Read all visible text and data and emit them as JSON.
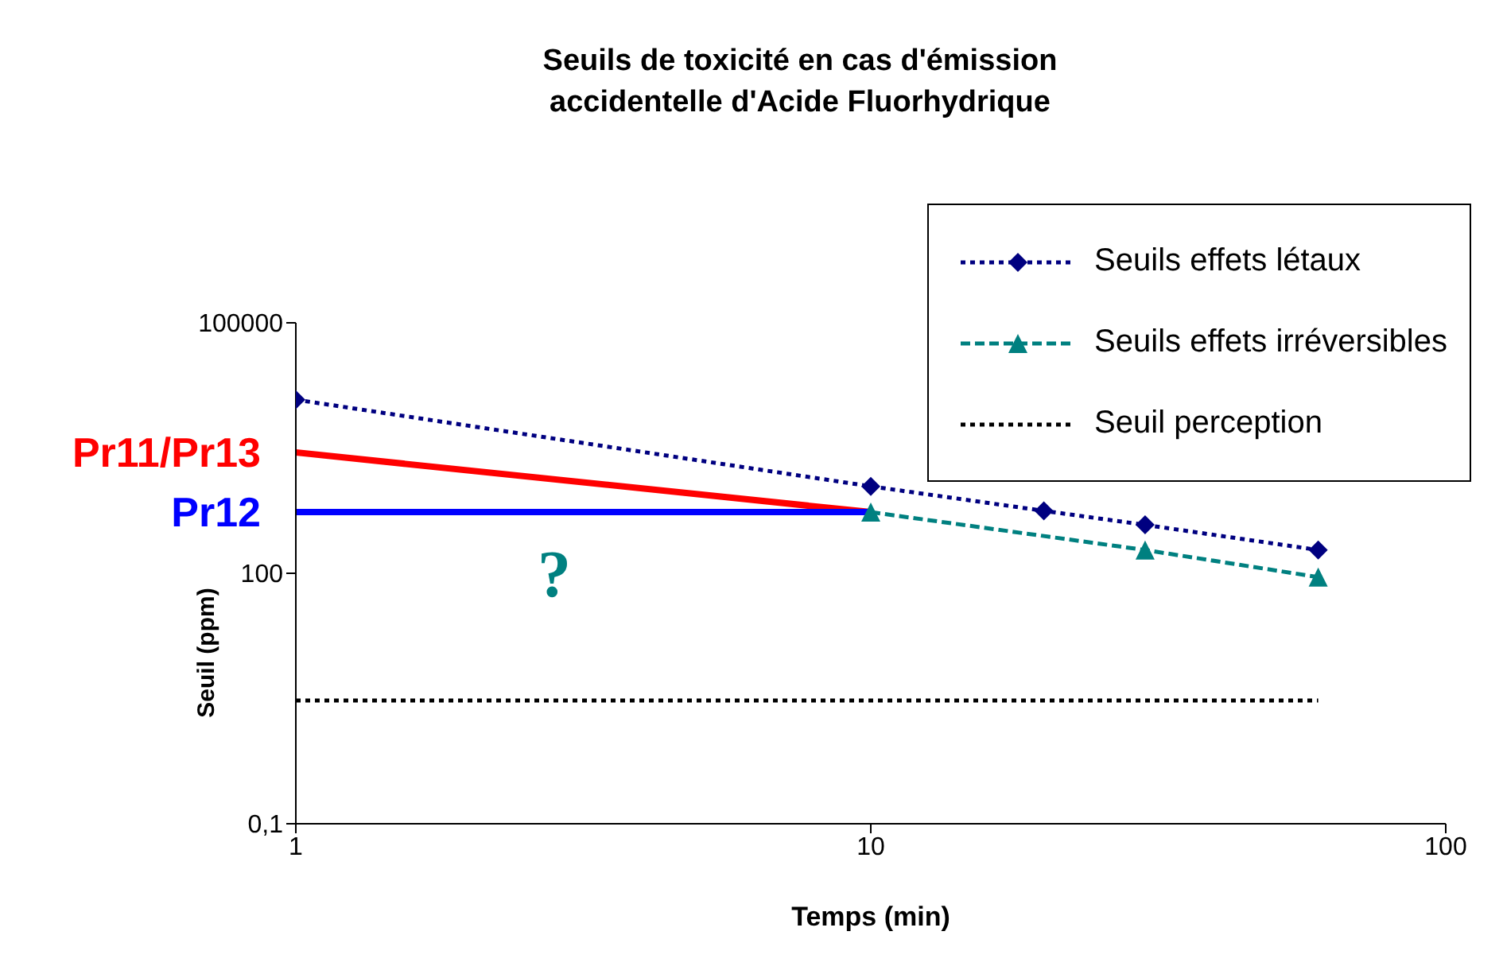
{
  "chart_data": {
    "type": "line",
    "title": "Seuils de toxicité en cas d'émission accidentelle d'Acide Fluorhydrique",
    "xlabel": "Temps (min)",
    "ylabel": "Seuil (ppm)",
    "log": "xy",
    "xlim": [
      1,
      100
    ],
    "xticks": [
      1,
      10,
      100
    ],
    "ylim": [
      0.1,
      100000
    ],
    "yticks": [
      {
        "value": 0.1,
        "label": "0,1"
      },
      100,
      100000
    ],
    "grid": false,
    "legend": "top right",
    "series": [
      {
        "name": "Seuils effets létaux",
        "color": "#000080",
        "x": [
          1,
          10,
          20,
          30,
          60
        ],
        "values": [
          12000,
          1100,
          560,
          380,
          190
        ],
        "marker": "diamond",
        "line_style": "dotted"
      },
      {
        "name": "Seuils effets irréversibles",
        "color": "#008080",
        "x": [
          10,
          30,
          60
        ],
        "values": [
          540,
          190,
          90
        ],
        "marker": "triangle",
        "line_style": "dashed"
      },
      {
        "name": "Seuil perception",
        "color": "#000000",
        "x": [
          1,
          60
        ],
        "values": [
          3,
          3
        ],
        "marker": "none",
        "line_style": "dotted"
      },
      {
        "name": "Pr11/Pr13",
        "color": "#ff0000",
        "x": [
          1,
          10
        ],
        "values": [
          2800,
          540
        ],
        "marker": "none",
        "line_style": "solid"
      },
      {
        "name": "Pr12",
        "color": "#0000ff",
        "x": [
          1,
          10
        ],
        "values": [
          540,
          540
        ],
        "marker": "none",
        "line_style": "solid"
      }
    ],
    "annotations": [
      "?"
    ]
  }
}
